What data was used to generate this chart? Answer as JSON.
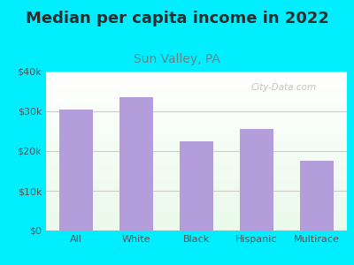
{
  "title": "Median per capita income in 2022",
  "subtitle": "Sun Valley, PA",
  "categories": [
    "All",
    "White",
    "Black",
    "Hispanic",
    "Multirace"
  ],
  "values": [
    30500,
    33500,
    22500,
    25500,
    17500
  ],
  "bar_color": "#b39ddb",
  "background_outer": "#00eeff",
  "title_fontsize": 13,
  "subtitle_fontsize": 10,
  "subtitle_color": "#5b8a8a",
  "title_color": "#2d2d2d",
  "tick_label_color": "#555555",
  "ylim": [
    0,
    40000
  ],
  "yticks": [
    0,
    10000,
    20000,
    30000,
    40000
  ],
  "ytick_labels": [
    "$0",
    "$10k",
    "$20k",
    "$30k",
    "$40k"
  ],
  "watermark": "City-Data.com",
  "grid_color": "#cccccc"
}
